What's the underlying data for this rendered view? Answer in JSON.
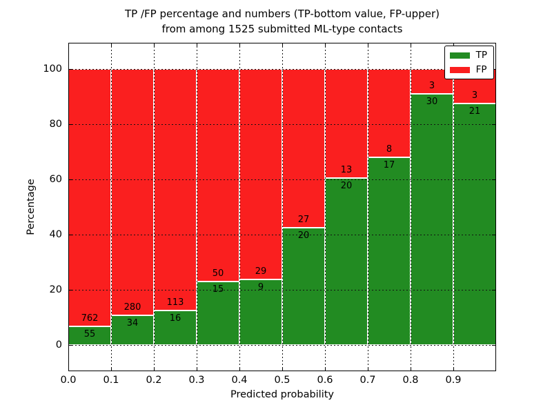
{
  "title": {
    "line1": "TP /FP percentage and numbers (TP-bottom value, FP-upper)",
    "line2": "from among 1525 submitted ML-type contacts"
  },
  "axes": {
    "xlabel": "Predicted probability",
    "ylabel": "Percentage",
    "xticks": [
      "0.0",
      "0.1",
      "0.2",
      "0.3",
      "0.4",
      "0.5",
      "0.6",
      "0.7",
      "0.8",
      "0.9"
    ],
    "yticks": [
      0,
      20,
      40,
      60,
      80,
      100
    ]
  },
  "colors": {
    "tp_green": "#228b22",
    "fp_red": "#fa1f1f",
    "grid": "#111111",
    "bar_edge": "#ffffff"
  },
  "legend": {
    "position": "upper right",
    "items": [
      {
        "label": "TP",
        "color_key": "tp_green"
      },
      {
        "label": "FP",
        "color_key": "fp_red"
      }
    ]
  },
  "chart_data": {
    "type": "bar",
    "stacked": true,
    "normalized": "percent (TP% + FP% = 100 per bin)",
    "title": "TP /FP percentage and numbers (TP-bottom value, FP-upper) from among 1525 submitted ML-type contacts",
    "xlabel": "Predicted probability",
    "ylabel": "Percentage",
    "categories": [
      "0.0",
      "0.1",
      "0.2",
      "0.3",
      "0.4",
      "0.5",
      "0.6",
      "0.7",
      "0.8",
      "0.9"
    ],
    "bin_width": 0.1,
    "series": [
      {
        "name": "TP",
        "values": [
          55,
          34,
          16,
          15,
          9,
          20,
          20,
          17,
          30,
          21
        ]
      },
      {
        "name": "FP",
        "values": [
          762,
          280,
          113,
          50,
          29,
          27,
          13,
          8,
          3,
          3
        ]
      }
    ],
    "tp_percent": [
      6.73,
      10.83,
      12.4,
      23.08,
      23.68,
      42.55,
      60.61,
      68.0,
      90.91,
      87.5
    ],
    "total_contacts": 1525,
    "ylim": [
      -9.5,
      109.5
    ],
    "xlim": [
      0.0,
      1.0
    ],
    "yticks": [
      0,
      20,
      40,
      60,
      80,
      100
    ],
    "grid": true,
    "grid_style": "dotted, drawn above bars",
    "bar_labels": "raw counts: TP printed just below stack boundary, FP just above",
    "legend_position": "upper right"
  }
}
